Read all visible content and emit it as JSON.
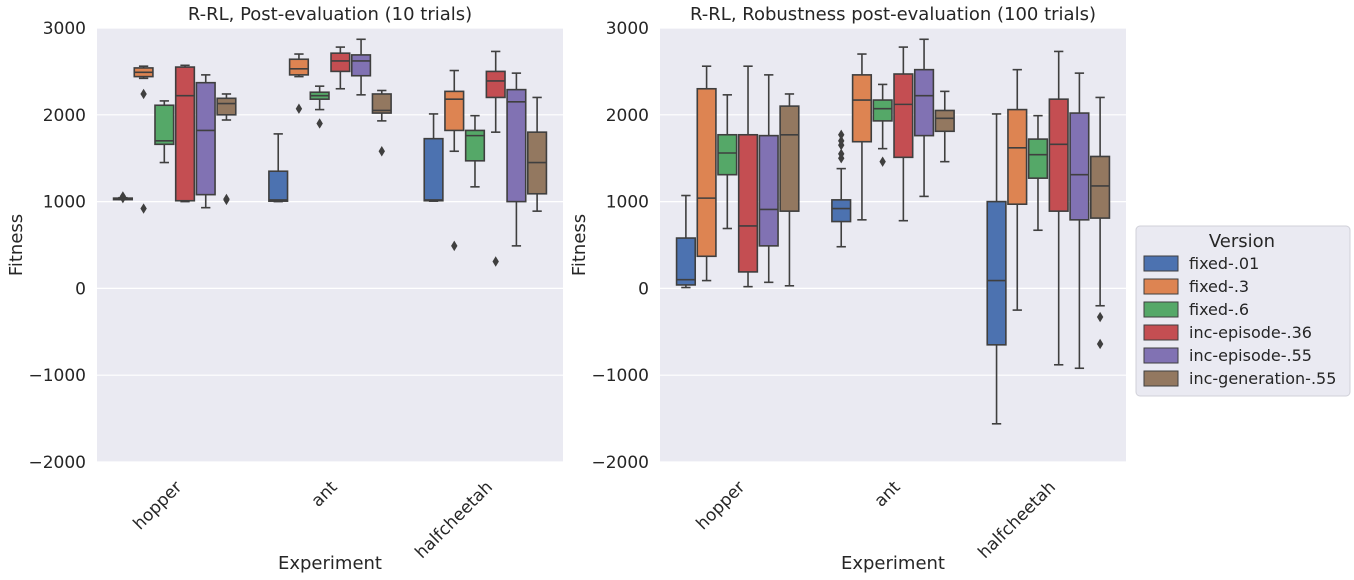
{
  "chart_data": [
    {
      "type": "box",
      "title": "R-RL, Post-evaluation (10 trials)",
      "xlabel": "Experiment",
      "ylabel": "Fitness",
      "ylim": [
        -2000,
        3000
      ],
      "yticks": [
        3000,
        2000,
        1000,
        0,
        -1000,
        -2000
      ],
      "ytick_labels": [
        "3000",
        "2000",
        "1000",
        "0",
        "−1000",
        "−2000"
      ],
      "categories": [
        "hopper",
        "ant",
        "halfcheetah"
      ],
      "grid": true,
      "series": [
        {
          "name": "fixed-.01",
          "boxes": [
            {
              "q1": 1030,
              "median": 1035,
              "q3": 1040,
              "whislo": 1025,
              "whishi": 1045,
              "fliers": [
                1060,
                1040
              ]
            },
            {
              "q1": 1005,
              "median": 1020,
              "q3": 1350,
              "whislo": 1000,
              "whishi": 1780,
              "fliers": []
            },
            {
              "q1": 1010,
              "median": 1020,
              "q3": 1725,
              "whislo": 1005,
              "whishi": 2010,
              "fliers": []
            }
          ]
        },
        {
          "name": "fixed-.3",
          "boxes": [
            {
              "q1": 2440,
              "median": 2490,
              "q3": 2540,
              "whislo": 2420,
              "whishi": 2560,
              "fliers": [
                2240,
                920
              ]
            },
            {
              "q1": 2460,
              "median": 2530,
              "q3": 2640,
              "whislo": 2440,
              "whishi": 2700,
              "fliers": [
                2070
              ]
            },
            {
              "q1": 1820,
              "median": 2180,
              "q3": 2270,
              "whislo": 1580,
              "whishi": 2510,
              "fliers": [
                490
              ]
            }
          ]
        },
        {
          "name": "fixed-.6",
          "boxes": [
            {
              "q1": 1660,
              "median": 1700,
              "q3": 2110,
              "whislo": 1450,
              "whishi": 2160,
              "fliers": []
            },
            {
              "q1": 2180,
              "median": 2220,
              "q3": 2260,
              "whislo": 2060,
              "whishi": 2330,
              "fliers": [
                1900
              ]
            },
            {
              "q1": 1470,
              "median": 1760,
              "q3": 1820,
              "whislo": 1170,
              "whishi": 1990,
              "fliers": []
            }
          ]
        },
        {
          "name": "inc-episode-.36",
          "boxes": [
            {
              "q1": 1010,
              "median": 2220,
              "q3": 2550,
              "whislo": 1000,
              "whishi": 2570,
              "fliers": []
            },
            {
              "q1": 2500,
              "median": 2620,
              "q3": 2710,
              "whislo": 2300,
              "whishi": 2780,
              "fliers": []
            },
            {
              "q1": 2200,
              "median": 2390,
              "q3": 2500,
              "whislo": 1800,
              "whishi": 2730,
              "fliers": [
                310
              ]
            }
          ]
        },
        {
          "name": "inc-episode-.55",
          "boxes": [
            {
              "q1": 1080,
              "median": 1820,
              "q3": 2370,
              "whislo": 930,
              "whishi": 2460,
              "fliers": []
            },
            {
              "q1": 2450,
              "median": 2620,
              "q3": 2690,
              "whislo": 2230,
              "whishi": 2870,
              "fliers": []
            },
            {
              "q1": 1000,
              "median": 2150,
              "q3": 2290,
              "whislo": 490,
              "whishi": 2480,
              "fliers": []
            }
          ]
        },
        {
          "name": "inc-generation-.55",
          "boxes": [
            {
              "q1": 2000,
              "median": 2130,
              "q3": 2190,
              "whislo": 1940,
              "whishi": 2240,
              "fliers": [
                1020,
                1030
              ]
            },
            {
              "q1": 2020,
              "median": 2050,
              "q3": 2240,
              "whislo": 1930,
              "whishi": 2280,
              "fliers": [
                1580
              ]
            },
            {
              "q1": 1090,
              "median": 1450,
              "q3": 1800,
              "whislo": 890,
              "whishi": 2200,
              "fliers": []
            }
          ]
        }
      ]
    },
    {
      "type": "box",
      "title": "R-RL, Robustness post-evaluation (100 trials)",
      "xlabel": "Experiment",
      "ylabel": "Fitness",
      "ylim": [
        -2000,
        3000
      ],
      "yticks": [
        3000,
        2000,
        1000,
        0,
        -1000,
        -2000
      ],
      "ytick_labels": [
        "3000",
        "2000",
        "1000",
        "0",
        "−1000",
        "−2000"
      ],
      "categories": [
        "hopper",
        "ant",
        "halfcheetah"
      ],
      "grid": true,
      "series": [
        {
          "name": "fixed-.01",
          "boxes": [
            {
              "q1": 40,
              "median": 100,
              "q3": 580,
              "whislo": 10,
              "whishi": 1070,
              "fliers": []
            },
            {
              "q1": 770,
              "median": 920,
              "q3": 1020,
              "whislo": 480,
              "whishi": 1380,
              "fliers": [
                1500,
                1550,
                1650,
                1700,
                1770
              ]
            },
            {
              "q1": -650,
              "median": 90,
              "q3": 1000,
              "whislo": -1560,
              "whishi": 2010,
              "fliers": []
            }
          ]
        },
        {
          "name": "fixed-.3",
          "boxes": [
            {
              "q1": 370,
              "median": 1040,
              "q3": 2300,
              "whislo": 90,
              "whishi": 2560,
              "fliers": []
            },
            {
              "q1": 1690,
              "median": 2170,
              "q3": 2460,
              "whislo": 790,
              "whishi": 2700,
              "fliers": []
            },
            {
              "q1": 970,
              "median": 1620,
              "q3": 2060,
              "whislo": -250,
              "whishi": 2520,
              "fliers": []
            }
          ]
        },
        {
          "name": "fixed-.6",
          "boxes": [
            {
              "q1": 1310,
              "median": 1560,
              "q3": 1770,
              "whislo": 690,
              "whishi": 2230,
              "fliers": []
            },
            {
              "q1": 1930,
              "median": 2070,
              "q3": 2170,
              "whislo": 1610,
              "whishi": 2350,
              "fliers": [
                1460
              ]
            },
            {
              "q1": 1270,
              "median": 1540,
              "q3": 1720,
              "whislo": 670,
              "whishi": 1990,
              "fliers": []
            }
          ]
        },
        {
          "name": "inc-episode-.36",
          "boxes": [
            {
              "q1": 190,
              "median": 720,
              "q3": 1770,
              "whislo": 20,
              "whishi": 2560,
              "fliers": []
            },
            {
              "q1": 1510,
              "median": 2120,
              "q3": 2470,
              "whislo": 780,
              "whishi": 2780,
              "fliers": []
            },
            {
              "q1": 890,
              "median": 1660,
              "q3": 2180,
              "whislo": -880,
              "whishi": 2730,
              "fliers": []
            }
          ]
        },
        {
          "name": "inc-episode-.55",
          "boxes": [
            {
              "q1": 490,
              "median": 910,
              "q3": 1760,
              "whislo": 70,
              "whishi": 2460,
              "fliers": []
            },
            {
              "q1": 1760,
              "median": 2220,
              "q3": 2520,
              "whislo": 1060,
              "whishi": 2870,
              "fliers": []
            },
            {
              "q1": 790,
              "median": 1310,
              "q3": 2020,
              "whislo": -920,
              "whishi": 2480,
              "fliers": []
            }
          ]
        },
        {
          "name": "inc-generation-.55",
          "boxes": [
            {
              "q1": 890,
              "median": 1770,
              "q3": 2100,
              "whislo": 30,
              "whishi": 2240,
              "fliers": []
            },
            {
              "q1": 1810,
              "median": 1960,
              "q3": 2050,
              "whislo": 1460,
              "whishi": 2270,
              "fliers": []
            },
            {
              "q1": 810,
              "median": 1180,
              "q3": 1520,
              "whislo": -200,
              "whishi": 2200,
              "fliers": [
                -330,
                -640
              ]
            }
          ]
        }
      ]
    }
  ],
  "legend": {
    "title": "Version",
    "placement": "right-center",
    "entries": [
      "fixed-.01",
      "fixed-.3",
      "fixed-.6",
      "inc-episode-.36",
      "inc-episode-.55",
      "inc-generation-.55"
    ]
  },
  "colors": {
    "fixed-.01": "#4c72b0",
    "fixed-.3": "#dd8452",
    "fixed-.6": "#55a868",
    "inc-episode-.36": "#c44e52",
    "inc-episode-.55": "#8172b3",
    "inc-generation-.55": "#937860",
    "axes_background": "#eaeaf2",
    "grid": "#ffffff",
    "line": "#3f3f3f"
  }
}
